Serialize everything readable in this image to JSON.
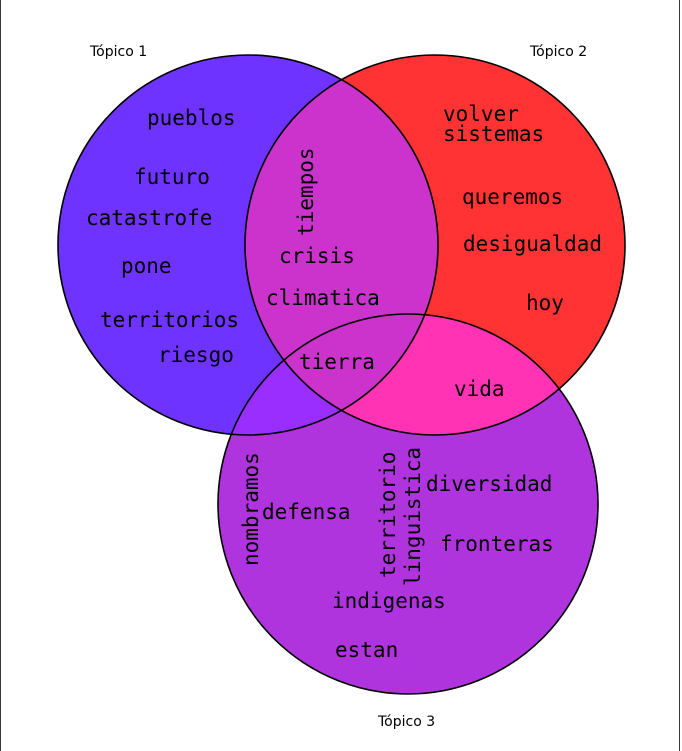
{
  "sets": [
    {
      "name": "Tópico 1",
      "color": "#6e33ff"
    },
    {
      "name": "Tópico 2",
      "color": "#ff3333"
    },
    {
      "name": "Tópico 3",
      "color": "#b034de"
    }
  ],
  "regions": {
    "t1_only": [
      "pueblos",
      "futuro",
      "catastrofe",
      "pone",
      "territorios",
      "riesgo"
    ],
    "t2_only": [
      "volver",
      "sistemas",
      "queremos",
      "desigualdad",
      "hoy"
    ],
    "t3_only": [
      "nombramos",
      "defensa",
      "territorio",
      "linguistica",
      "diversidad",
      "fronteras",
      "indigenas",
      "estan"
    ],
    "t1_t2": [
      "tiempos",
      "crisis",
      "climatica"
    ],
    "t1_t2_t3": [
      "tierra"
    ],
    "t2_t3": [
      "vida"
    ]
  },
  "overlap_colors": {
    "t1_t2": "#cc33cc",
    "t1_t3": "#9a2eff",
    "t2_t3": "#ff33b3",
    "t1_t2_t3": "#cc33cc"
  }
}
